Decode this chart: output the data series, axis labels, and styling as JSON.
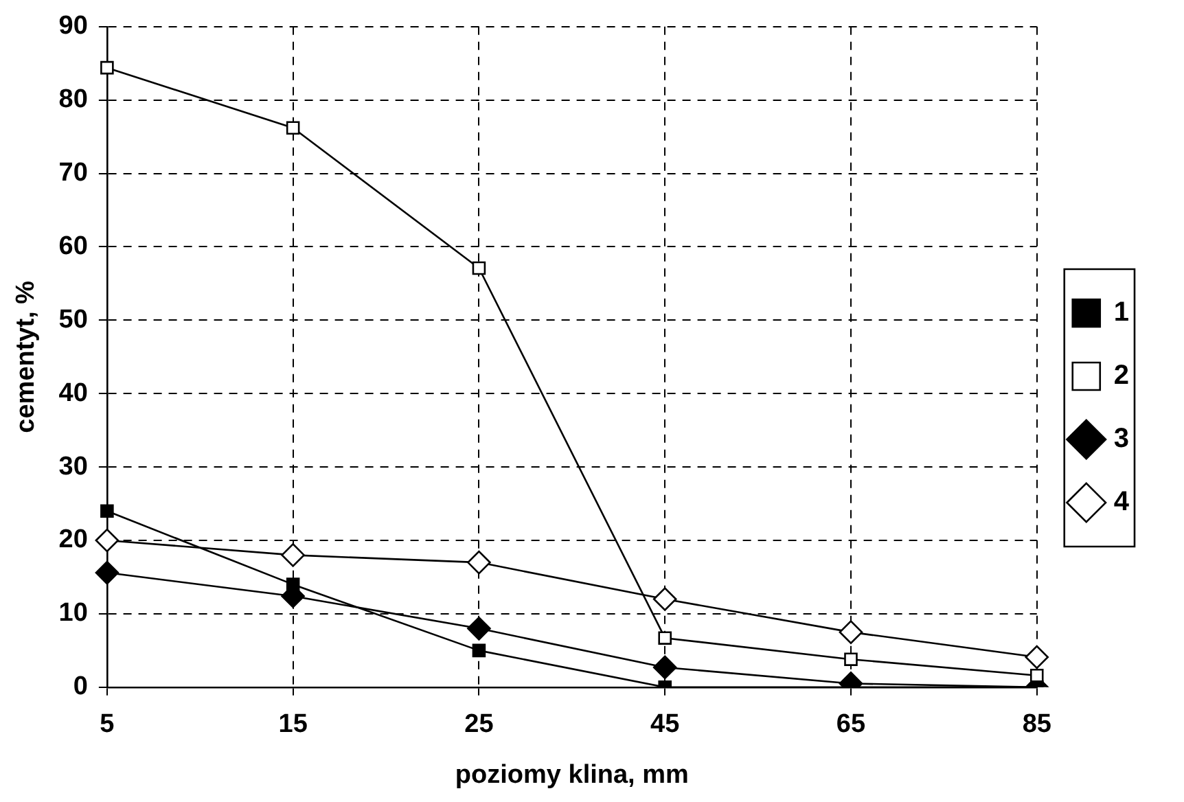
{
  "chart_data": {
    "type": "line",
    "xlabel": "poziomy klina, mm",
    "ylabel": "cementyt, %",
    "categories": [
      "5",
      "15",
      "25",
      "45",
      "65",
      "85"
    ],
    "ylim": [
      0,
      90
    ],
    "yticks": [
      0,
      10,
      20,
      30,
      40,
      50,
      60,
      70,
      80,
      90
    ],
    "grid": true,
    "legend": "right",
    "line_style": "solid",
    "series": [
      {
        "name": "1",
        "color": "#000000",
        "marker": "square",
        "values": [
          24,
          14,
          5,
          0,
          0,
          0
        ]
      },
      {
        "name": "2",
        "color": "#000000",
        "marker": "square",
        "values": [
          84.4,
          76.2,
          57.1,
          6.7,
          3.8,
          1.6
        ]
      },
      {
        "name": "3",
        "color": "#000000",
        "marker": "diamond",
        "values": [
          15.6,
          12.4,
          8,
          2.7,
          0.5,
          0
        ]
      },
      {
        "name": "4",
        "color": "#000000",
        "marker": "diamond",
        "values": [
          20,
          18,
          17,
          12,
          7.5,
          4.1
        ]
      }
    ]
  }
}
